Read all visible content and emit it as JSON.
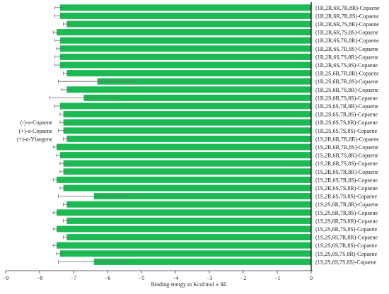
{
  "chart_data": {
    "type": "bar",
    "orientation": "horizontal",
    "xlabel": "Binding energy in Kcal/mol ± SE",
    "ylabel": "",
    "xlim": [
      -9,
      0
    ],
    "xticks": [
      -9,
      -8,
      -7,
      -6,
      -5,
      -4,
      -3,
      -2,
      -1,
      0
    ],
    "grid": false,
    "bar_color": "#1db954",
    "error_color": "#6b6b6b",
    "categories": [
      "(1R,2R,6R,7R,8R)-Copaene",
      "(1R,2R,6R,7R,8S)-Copaene",
      "(1R,2R,6R,7S,8R)-Copaene",
      "(1R,2R,6R,7S,8S)-Copaene",
      "(1R,2R,6S,7R,8R)-Copaene",
      "(1R,2R,6S,7R,8S)-Copaene",
      "(1R,2R,6S,7S,8R)-Copaene",
      "(1R,2R,6S,7S,8S)-Copaene",
      "(1R,2S,6R,7R,8R)-Copaene",
      "(1R,2S,6R,7R,8S)-Copaene",
      "(1R,2S,6R,7S,8R)-Copaene",
      "(1R,2S,6R,7S,8S)-Copaene",
      "(1R,2S,6S,7R,8R)-Copaene",
      "(1R,2S,6S,7R,8S)-Copaene",
      "(1R,2S,6S,7S,8R)-Copaene",
      "(1R,2S,6S,7S,8S)-Copaene",
      "(1S,2R,6R,7R,8R)-Copaene",
      "(1S,2R,6R,7R,8S)-Copaene",
      "(1S,2R,6R,7S,8R)-Copaene",
      "(1S,2R,6R,7S,8S)-Copaene",
      "(1S,2R,6S,7R,8R)-Copaene",
      "(1S,2R,6S,7R,8S)-Copaene",
      "(1S,2R,6S,7S,8R)-Copaene",
      "(1S,2R,6S,7S,8S)-Copaene",
      "(1S,2S,6R,7R,8R)-Copaene",
      "(1S,2S,6R,7R,8S)-Copaene",
      "(1S,2S,6R,7S,8R)-Copaene",
      "(1S,2S,6R,7S,8S)-Copaene",
      "(1S,2S,6S,7R,8R)-Copaene",
      "(1S,2S,6S,7R,8S)-Copaene",
      "(1S,2S,6S,7S,8R)-Copaene",
      "(1S,2S,6S,7S,8S)-Copaene"
    ],
    "values": [
      -7.4,
      -7.4,
      -7.2,
      -7.5,
      -7.4,
      -7.4,
      -7.4,
      -7.4,
      -7.2,
      -6.3,
      -7.2,
      -6.7,
      -7.4,
      -7.3,
      -7.3,
      -7.3,
      -7.2,
      -7.5,
      -7.4,
      -7.3,
      -7.3,
      -7.5,
      -7.3,
      -6.4,
      -7.2,
      -7.5,
      -7.2,
      -7.5,
      -7.2,
      -7.5,
      -7.4,
      -6.4
    ],
    "errors": [
      0.15,
      0.15,
      0.1,
      0.1,
      0.15,
      0.1,
      0.15,
      0.15,
      0.1,
      1.15,
      0.15,
      1.0,
      0.15,
      0.1,
      0.1,
      0.15,
      0.1,
      0.1,
      0.1,
      0.1,
      0.1,
      0.1,
      0.1,
      1.05,
      0.1,
      0.1,
      0.1,
      0.1,
      0.1,
      0.1,
      0.1,
      1.05
    ],
    "reference_labels": [
      "(-)-α-Copaene",
      "(+)-α-Copaene",
      "(+)-α-Ylangene"
    ],
    "reference_rows": [
      14,
      15,
      16
    ]
  }
}
